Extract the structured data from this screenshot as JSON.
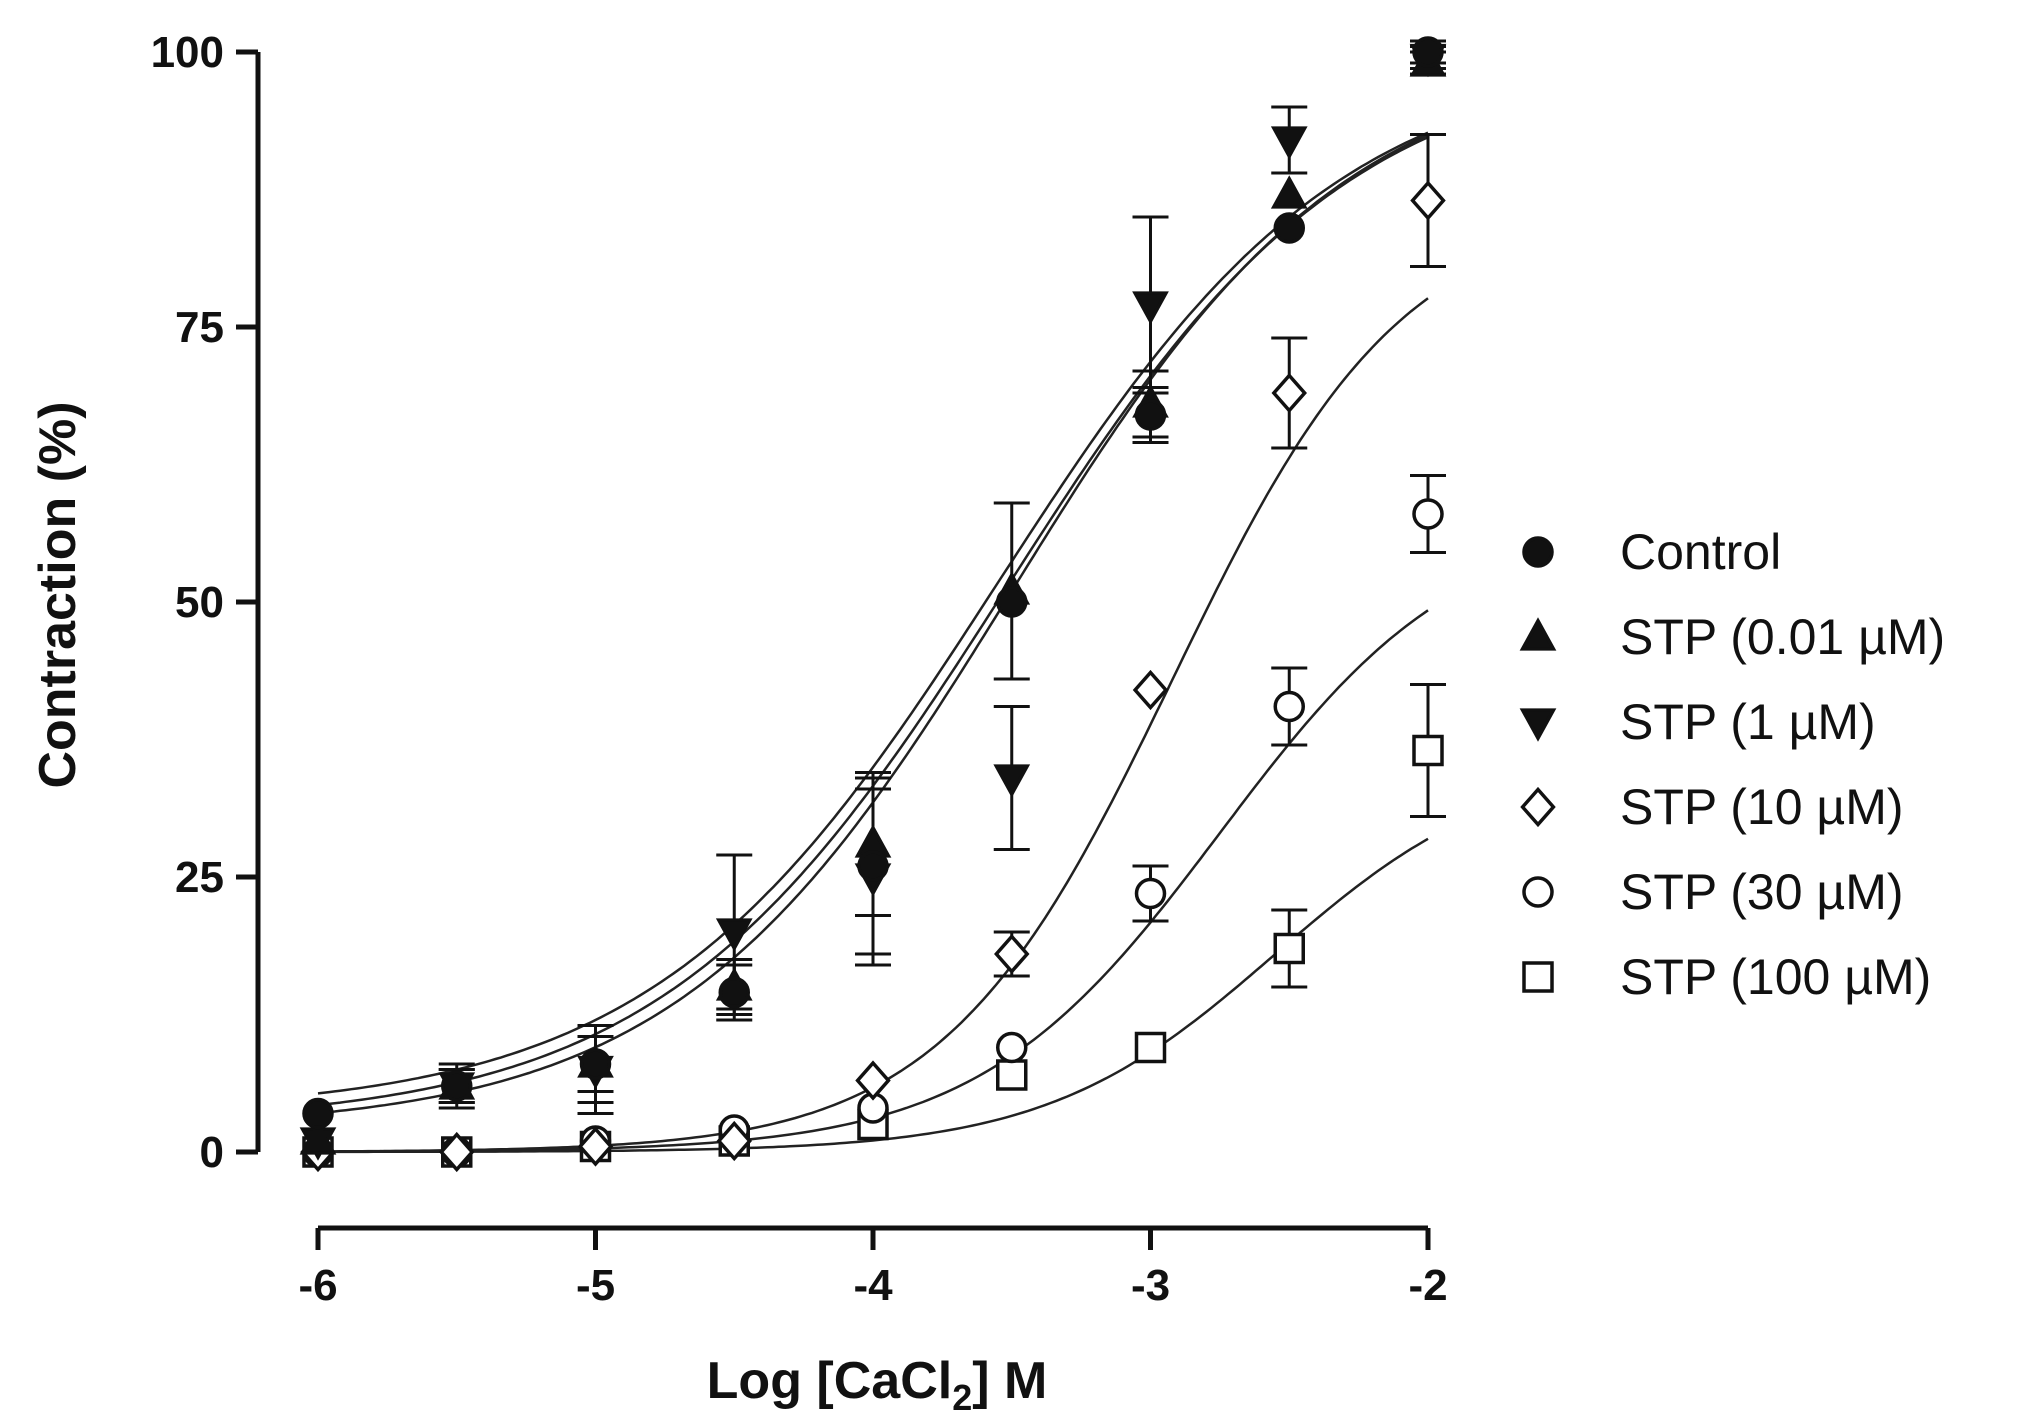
{
  "chart_data": {
    "type": "scatter",
    "title": "",
    "xlabel_prefix": "Log [CaCl",
    "xlabel_sub": "2",
    "xlabel_suffix": "] M",
    "ylabel": "Contraction (%)",
    "xlim": [
      -6,
      -2
    ],
    "ylim": [
      0,
      100
    ],
    "x_ticks": [
      -6,
      -5,
      -4,
      -3,
      -2
    ],
    "x_tick_labels": [
      "-6",
      "-5",
      "-4",
      "-3",
      "-2"
    ],
    "y_ticks": [
      0,
      25,
      50,
      75,
      100
    ],
    "y_tick_labels": [
      "0",
      "25",
      "50",
      "75",
      "100"
    ],
    "x": [
      -6,
      -5.5,
      -5,
      -4.5,
      -4,
      -3.5,
      -3,
      -2.5,
      -2
    ],
    "legend_position": "right",
    "series": [
      {
        "name": "Control",
        "marker": "circle-filled",
        "values": [
          3.5,
          6,
          8,
          14.5,
          26,
          50,
          67,
          84,
          100
        ],
        "errors": [
          0,
          1.5,
          2.5,
          2.5,
          8,
          0,
          2.5,
          0,
          1
        ],
        "fit": {
          "bottom": 3.5,
          "top": 100,
          "logec50": -3.55,
          "hill": 0.7
        }
      },
      {
        "name": "STP (0.01 µM)",
        "marker": "triangle-up-filled",
        "values": [
          1,
          6,
          8,
          15,
          28,
          51,
          68,
          87,
          99
        ],
        "errors": [
          0,
          2,
          3.5,
          2.5,
          6.5,
          8,
          3,
          0,
          1
        ],
        "fit": {
          "bottom": 2.5,
          "top": 100,
          "logec50": -3.52,
          "hill": 0.7
        }
      },
      {
        "name": "STP (1 µM)",
        "marker": "triangle-down-filled",
        "values": [
          1,
          6,
          7.5,
          20,
          25,
          34,
          77,
          92,
          99.5
        ],
        "errors": [
          0,
          1.5,
          4,
          7,
          8,
          6.5,
          8,
          3,
          1
        ],
        "fit": {
          "bottom": 2,
          "top": 100,
          "logec50": -3.5,
          "hill": 0.72
        }
      },
      {
        "name": "STP (10 µM)",
        "marker": "diamond-open",
        "values": [
          0,
          0,
          0.5,
          1,
          6.5,
          18,
          42,
          69,
          86.5
        ],
        "errors": [
          0,
          0,
          0,
          0,
          0,
          2,
          0,
          5,
          6
        ],
        "fit": {
          "bottom": 0,
          "top": 86,
          "logec50": -2.92,
          "hill": 1.05
        }
      },
      {
        "name": "STP (30 µM)",
        "marker": "circle-open",
        "values": [
          0,
          0,
          1,
          2,
          4,
          9.5,
          23.5,
          40.5,
          58
        ],
        "errors": [
          0,
          0,
          0,
          0,
          0,
          0,
          2.5,
          3.5,
          3.5
        ],
        "fit": {
          "bottom": 0,
          "top": 58,
          "logec50": -2.75,
          "hill": 1.0
        }
      },
      {
        "name": "STP (100 µM)",
        "marker": "square-open",
        "values": [
          0,
          0,
          0.5,
          1,
          2.5,
          7,
          9.5,
          18.5,
          36.5
        ],
        "errors": [
          0,
          0,
          0,
          0,
          0,
          0,
          0,
          3.5,
          6
        ],
        "fit": {
          "bottom": 0,
          "top": 36,
          "logec50": -2.55,
          "hill": 1.05
        }
      }
    ]
  }
}
